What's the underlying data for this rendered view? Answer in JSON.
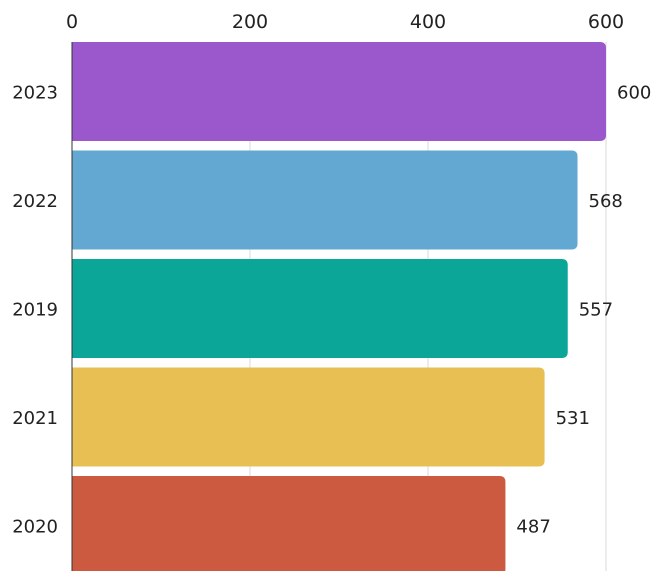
{
  "chart_data": {
    "type": "bar",
    "orientation": "horizontal",
    "title": "",
    "xlabel": "",
    "ylabel": "",
    "categories": [
      "2023",
      "2022",
      "2019",
      "2021",
      "2020"
    ],
    "values": [
      600,
      568,
      557,
      531,
      487
    ],
    "colors": [
      "#9a58cc",
      "#63a8d2",
      "#0ba697",
      "#e8bf53",
      "#cb5a41"
    ],
    "xlim": [
      0,
      600
    ],
    "x_ticks": [
      0,
      200,
      400,
      600
    ],
    "x_tick_labels": [
      "0",
      "200",
      "400",
      "600"
    ],
    "x_axis_position": "top",
    "grid": true,
    "data_labels": true
  }
}
